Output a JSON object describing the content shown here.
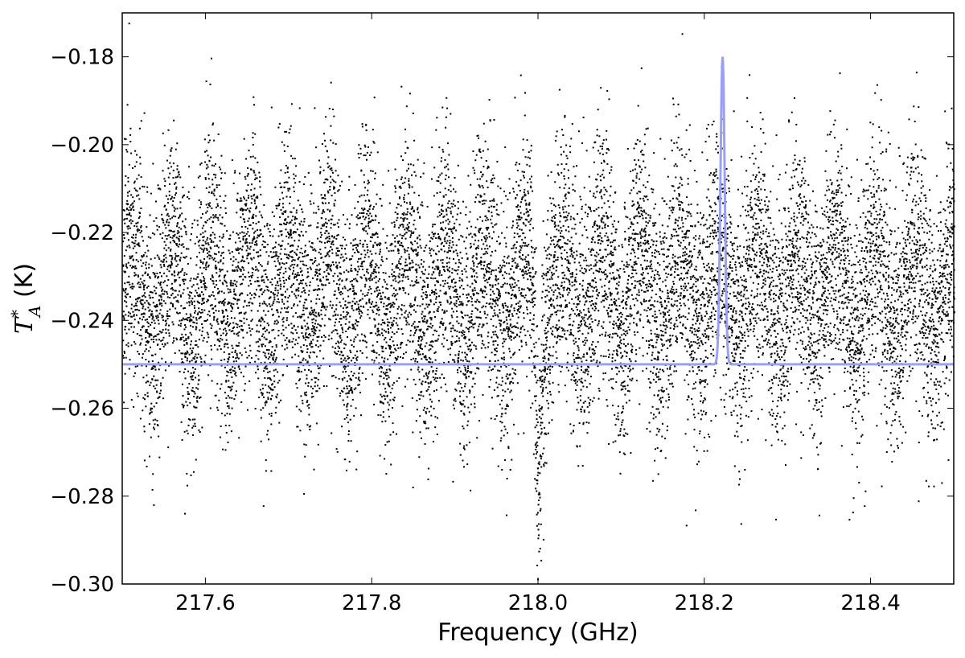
{
  "chart_data": {
    "type": "scatter",
    "title": "",
    "xlabel": "Frequency (GHz)",
    "ylabel_main": "T",
    "ylabel_sup": "*",
    "ylabel_sub": "A",
    "ylabel_unit": " (K)",
    "xlim": [
      217.5,
      218.5
    ],
    "ylim": [
      -0.3,
      -0.17
    ],
    "x_ticks": [
      217.6,
      217.8,
      218.0,
      218.2,
      218.4
    ],
    "x_tick_labels": [
      "217.6",
      "217.8",
      "218.0",
      "218.2",
      "218.4"
    ],
    "y_ticks": [
      -0.18,
      -0.2,
      -0.22,
      -0.24,
      -0.26,
      -0.28,
      -0.3
    ],
    "y_tick_labels": [
      "−0.18",
      "−0.20",
      "−0.22",
      "−0.24",
      "−0.26",
      "−0.28",
      "−0.30"
    ],
    "grid": false,
    "series": [
      {
        "kind": "scatter",
        "color": "#000000",
        "n_points": 12000,
        "x_range": [
          217.5,
          218.5
        ],
        "baseline_y": -0.233,
        "noise_std_y": 0.014,
        "y_min": -0.296,
        "y_max": -0.176,
        "note_features": [
          {
            "x": 218.0,
            "y_min": -0.296,
            "description": "absorption dip"
          }
        ]
      },
      {
        "kind": "line",
        "color": "#9aa0f5",
        "model": "gaussian",
        "baseline_y": -0.25,
        "peak_x": 218.222,
        "peak_y": -0.18,
        "fwhm_ghz": 0.006
      }
    ]
  },
  "colors": {
    "points": "#000000",
    "fit_line": "#9aa0f5",
    "axes": "#000000",
    "background": "#ffffff"
  }
}
